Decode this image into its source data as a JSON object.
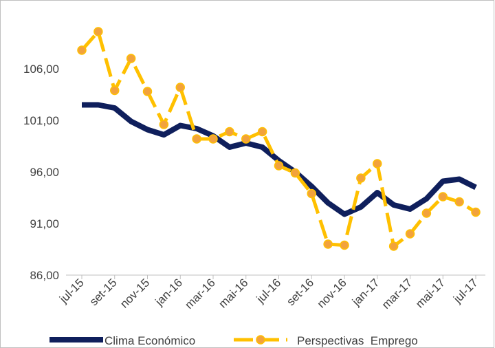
{
  "chart_data": {
    "type": "line",
    "categories": [
      "jul-15",
      null,
      "set-15",
      null,
      "nov-15",
      null,
      "jan-16",
      null,
      "mar-16",
      null,
      "mai-16",
      null,
      "jul-16",
      null,
      "set-16",
      null,
      "nov-16",
      null,
      "jan-17",
      null,
      "mar-17",
      null,
      "mai-17",
      null,
      "jul-17"
    ],
    "series": [
      {
        "name": "Clima Económico",
        "color": "#0f1f5c",
        "values": [
          102.5,
          102.5,
          102.2,
          100.9,
          100.1,
          99.6,
          100.5,
          100.2,
          99.5,
          98.4,
          98.8,
          98.4,
          97.1,
          96.0,
          94.6,
          93.0,
          91.9,
          92.6,
          94.0,
          92.8,
          92.4,
          93.4,
          95.1,
          95.3,
          94.5
        ]
      },
      {
        "name": "Perspectivas  Emprego",
        "color": "#ffc000",
        "marker_color": "#f2a23c",
        "dashed": true,
        "values": [
          107.8,
          109.6,
          103.9,
          107.0,
          103.8,
          100.6,
          104.2,
          99.2,
          99.2,
          99.9,
          99.2,
          99.9,
          96.6,
          95.9,
          93.9,
          89.0,
          88.9,
          95.4,
          96.8,
          88.8,
          90.0,
          92.0,
          93.6,
          93.1,
          92.1
        ]
      }
    ],
    "ylim": [
      86,
      112
    ],
    "yticks": [
      {
        "value": 86,
        "label": "86,00"
      },
      {
        "value": 91,
        "label": "91,00"
      },
      {
        "value": 96,
        "label": "96,00"
      },
      {
        "value": 101,
        "label": "101,00"
      },
      {
        "value": 106,
        "label": "106,00"
      }
    ],
    "legend": "bottom"
  }
}
